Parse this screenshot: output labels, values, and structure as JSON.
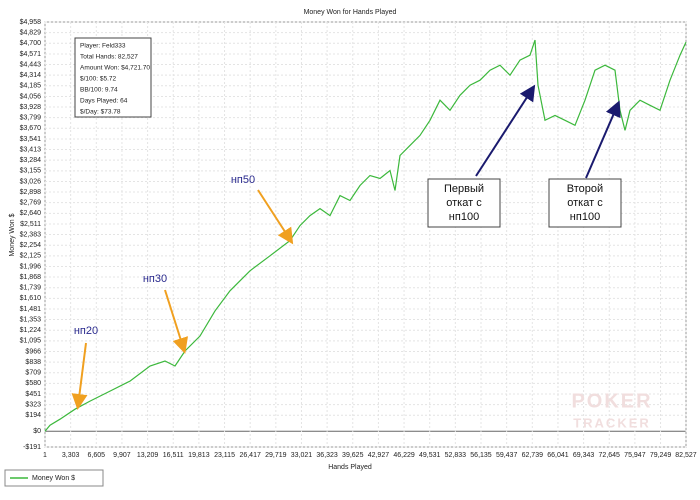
{
  "chart_data": {
    "type": "line",
    "title": "Money Won for Hands Played",
    "x_label": "Hands Played",
    "y_label": "Money Won $",
    "x": [
      1,
      644,
      1931,
      3863,
      5794,
      8369,
      10944,
      13519,
      15450,
      16738,
      18025,
      19956,
      21888,
      23819,
      26394,
      28969,
      31544,
      32831,
      34119,
      35406,
      36694,
      37981,
      39269,
      40556,
      41844,
      43131,
      44419,
      45063,
      45706,
      46994,
      48281,
      49569,
      50856,
      52144,
      53431,
      54719,
      56006,
      57294,
      58581,
      59869,
      61156,
      62444,
      63088,
      63474,
      64375,
      65663,
      66950,
      68238,
      69525,
      70813,
      72100,
      73388,
      74031,
      74675,
      75319,
      76606,
      77894,
      79181,
      80469,
      81756,
      82527
    ],
    "series": [
      {
        "name": "Money Won $",
        "color": "#3cb83c",
        "values": [
          0,
          73,
          146,
          267,
          365,
          486,
          608,
          790,
          851,
          790,
          972,
          1154,
          1458,
          1701,
          1944,
          2126,
          2309,
          2491,
          2612,
          2697,
          2612,
          2855,
          2795,
          2977,
          3098,
          3062,
          3159,
          2916,
          3341,
          3463,
          3584,
          3767,
          4010,
          3888,
          4070,
          4192,
          4253,
          4374,
          4435,
          4313,
          4496,
          4556,
          4739,
          4192,
          3767,
          3827,
          3767,
          3706,
          4010,
          4374,
          4435,
          4374,
          3888,
          3645,
          3888,
          4010,
          3949,
          3888,
          4253,
          4556,
          4714
        ]
      }
    ],
    "xlim": [
      1,
      82527
    ],
    "xticks": [
      1,
      {
        "value": 3303,
        "label": "3,303"
      },
      {
        "value": 6605,
        "label": "6,605"
      },
      {
        "value": 9907,
        "label": "9,907"
      },
      {
        "value": 13209,
        "label": "13,209"
      },
      {
        "value": 16511,
        "label": "16,511"
      },
      {
        "value": 19813,
        "label": "19,813"
      },
      {
        "value": 23115,
        "label": "23,115"
      },
      {
        "value": 26417,
        "label": "26,417"
      },
      {
        "value": 29719,
        "label": "29,719"
      },
      {
        "value": 33021,
        "label": "33,021"
      },
      {
        "value": 36323,
        "label": "36,323"
      },
      {
        "value": 39625,
        "label": "39,625"
      },
      {
        "value": 42927,
        "label": "42,927"
      },
      {
        "value": 46229,
        "label": "46,229"
      },
      {
        "value": 49531,
        "label": "49,531"
      },
      {
        "value": 52833,
        "label": "52,833"
      },
      {
        "value": 56135,
        "label": "56,135"
      },
      {
        "value": 59437,
        "label": "59,437"
      },
      {
        "value": 62739,
        "label": "62,739"
      },
      {
        "value": 66041,
        "label": "66,041"
      },
      {
        "value": 69343,
        "label": "69,343"
      },
      {
        "value": 72645,
        "label": "72,645"
      },
      {
        "value": 75947,
        "label": "75,947"
      },
      {
        "value": 79249,
        "label": "79,249"
      },
      {
        "value": 82527,
        "label": "82,527"
      }
    ],
    "ylim": [
      -191,
      4958
    ],
    "yticks": [
      {
        "value": -191,
        "label": "-$191"
      },
      {
        "value": 0,
        "label": "$0"
      },
      {
        "value": 194,
        "label": "$194"
      },
      {
        "value": 323,
        "label": "$323"
      },
      {
        "value": 451,
        "label": "$451"
      },
      {
        "value": 580,
        "label": "$580"
      },
      {
        "value": 709,
        "label": "$709"
      },
      {
        "value": 838,
        "label": "$838"
      },
      {
        "value": 966,
        "label": "$966"
      },
      {
        "value": 1095,
        "label": "$1,095"
      },
      {
        "value": 1224,
        "label": "$1,224"
      },
      {
        "value": 1353,
        "label": "$1,353"
      },
      {
        "value": 1481,
        "label": "$1,481"
      },
      {
        "value": 1610,
        "label": "$1,610"
      },
      {
        "value": 1739,
        "label": "$1,739"
      },
      {
        "value": 1868,
        "label": "$1,868"
      },
      {
        "value": 1996,
        "label": "$1,996"
      },
      {
        "value": 2125,
        "label": "$2,125"
      },
      {
        "value": 2254,
        "label": "$2,254"
      },
      {
        "value": 2383,
        "label": "$2,383"
      },
      {
        "value": 2511,
        "label": "$2,511"
      },
      {
        "value": 2640,
        "label": "$2,640"
      },
      {
        "value": 2769,
        "label": "$2,769"
      },
      {
        "value": 2898,
        "label": "$2,898"
      },
      {
        "value": 3026,
        "label": "$3,026"
      },
      {
        "value": 3155,
        "label": "$3,155"
      },
      {
        "value": 3284,
        "label": "$3,284"
      },
      {
        "value": 3413,
        "label": "$3,413"
      },
      {
        "value": 3541,
        "label": "$3,541"
      },
      {
        "value": 3670,
        "label": "$3,670"
      },
      {
        "value": 3799,
        "label": "$3,799"
      },
      {
        "value": 3928,
        "label": "$3,928"
      },
      {
        "value": 4056,
        "label": "$4,056"
      },
      {
        "value": 4185,
        "label": "$4,185"
      },
      {
        "value": 4314,
        "label": "$4,314"
      },
      {
        "value": 4443,
        "label": "$4,443"
      },
      {
        "value": 4571,
        "label": "$4,571"
      },
      {
        "value": 4700,
        "label": "$4,700"
      },
      {
        "value": 4829,
        "label": "$4,829"
      },
      {
        "value": 4958,
        "label": "$4,958"
      }
    ],
    "grid": true,
    "stats": [
      "Player: Feld333",
      "Total Hands: 82,527",
      "Amount Won: $4,721.70",
      "$/100: $5.72",
      "BB/100: 9.74",
      "Days Played: 64",
      "$/Day: $73.78"
    ],
    "annotations": [
      {
        "lines": [
          "нп20"
        ]
      },
      {
        "lines": [
          "нп30"
        ]
      },
      {
        "lines": [
          "нп50"
        ]
      },
      {
        "lines": [
          "Первый",
          "откат с",
          "нп100"
        ]
      },
      {
        "lines": [
          "Второй",
          "откат с",
          "нп100"
        ]
      }
    ],
    "watermark": [
      "POKER",
      "TRACKER"
    ]
  }
}
